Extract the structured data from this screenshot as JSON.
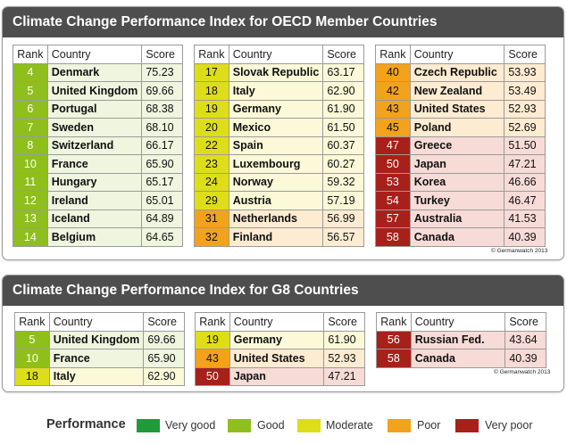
{
  "colors": {
    "very_good": "#1f9b3a",
    "good": "#8fbf1c",
    "moderate": "#dede18",
    "poor": "#f3a21b",
    "very_poor": "#a8201a",
    "good_row": "#eff5de",
    "moderate_row": "#fbf9d8",
    "poor_row": "#fdebd2",
    "very_poor_row": "#f7dbd6"
  },
  "chart_data": [
    {
      "type": "table",
      "title": "Climate Change Performance Index for OECD Member Countries",
      "columns": [
        "Rank",
        "Country",
        "Score"
      ],
      "rows": [
        {
          "rank": "4",
          "country": "Denmark",
          "score": "75.23",
          "performance": "good"
        },
        {
          "rank": "5",
          "country": "United Kingdom",
          "score": "69.66",
          "performance": "good"
        },
        {
          "rank": "6",
          "country": "Portugal",
          "score": "68.38",
          "performance": "good"
        },
        {
          "rank": "7",
          "country": "Sweden",
          "score": "68.10",
          "performance": "good"
        },
        {
          "rank": "8",
          "country": "Switzerland",
          "score": "66.17",
          "performance": "good"
        },
        {
          "rank": "10",
          "country": "France",
          "score": "65.90",
          "performance": "good"
        },
        {
          "rank": "11",
          "country": "Hungary",
          "score": "65.17",
          "performance": "good"
        },
        {
          "rank": "12",
          "country": "Ireland",
          "score": "65.01",
          "performance": "good"
        },
        {
          "rank": "13",
          "country": "Iceland",
          "score": "64.89",
          "performance": "good"
        },
        {
          "rank": "14",
          "country": "Belgium",
          "score": "64.65",
          "performance": "good"
        },
        {
          "rank": "17",
          "country": "Slovak Republic",
          "score": "63.17",
          "performance": "moderate"
        },
        {
          "rank": "18",
          "country": "Italy",
          "score": "62.90",
          "performance": "moderate"
        },
        {
          "rank": "19",
          "country": "Germany",
          "score": "61.90",
          "performance": "moderate"
        },
        {
          "rank": "20",
          "country": "Mexico",
          "score": "61.50",
          "performance": "moderate"
        },
        {
          "rank": "22",
          "country": "Spain",
          "score": "60.37",
          "performance": "moderate"
        },
        {
          "rank": "23",
          "country": "Luxembourg",
          "score": "60.27",
          "performance": "moderate"
        },
        {
          "rank": "24",
          "country": "Norway",
          "score": "59.32",
          "performance": "moderate"
        },
        {
          "rank": "29",
          "country": "Austria",
          "score": "57.19",
          "performance": "moderate"
        },
        {
          "rank": "31",
          "country": "Netherlands",
          "score": "56.99",
          "performance": "poor"
        },
        {
          "rank": "32",
          "country": "Finland",
          "score": "56.57",
          "performance": "poor"
        },
        {
          "rank": "40",
          "country": "Czech Republic",
          "score": "53.93",
          "performance": "poor"
        },
        {
          "rank": "42",
          "country": "New Zealand",
          "score": "53.49",
          "performance": "poor"
        },
        {
          "rank": "43",
          "country": "United States",
          "score": "52.93",
          "performance": "poor"
        },
        {
          "rank": "45",
          "country": "Poland",
          "score": "52.69",
          "performance": "poor"
        },
        {
          "rank": "47",
          "country": "Greece",
          "score": "51.50",
          "performance": "very_poor"
        },
        {
          "rank": "50",
          "country": "Japan",
          "score": "47.21",
          "performance": "very_poor"
        },
        {
          "rank": "53",
          "country": "Korea",
          "score": "46.66",
          "performance": "very_poor"
        },
        {
          "rank": "54",
          "country": "Turkey",
          "score": "46.47",
          "performance": "very_poor"
        },
        {
          "rank": "57",
          "country": "Australia",
          "score": "41.53",
          "performance": "very_poor"
        },
        {
          "rank": "58",
          "country": "Canada",
          "score": "40.39",
          "performance": "very_poor"
        }
      ],
      "copyright": "© Germanwatch 2013"
    },
    {
      "type": "table",
      "title": "Climate Change Performance Index for G8 Countries",
      "columns": [
        "Rank",
        "Country",
        "Score"
      ],
      "rows": [
        {
          "rank": "5",
          "country": "United Kingdom",
          "score": "69.66",
          "performance": "good"
        },
        {
          "rank": "10",
          "country": "France",
          "score": "65.90",
          "performance": "good"
        },
        {
          "rank": "18",
          "country": "Italy",
          "score": "62.90",
          "performance": "moderate"
        },
        {
          "rank": "19",
          "country": "Germany",
          "score": "61.90",
          "performance": "moderate"
        },
        {
          "rank": "43",
          "country": "United States",
          "score": "52.93",
          "performance": "poor"
        },
        {
          "rank": "50",
          "country": "Japan",
          "score": "47.21",
          "performance": "very_poor"
        },
        {
          "rank": "56",
          "country": "Russian Fed.",
          "score": "43.64",
          "performance": "very_poor"
        },
        {
          "rank": "58",
          "country": "Canada",
          "score": "40.39",
          "performance": "very_poor"
        }
      ],
      "copyright": "© Germanwatch 2013"
    }
  ],
  "legend": {
    "title": "Performance",
    "items": [
      {
        "key": "very_good",
        "label": "Very good"
      },
      {
        "key": "good",
        "label": "Good"
      },
      {
        "key": "moderate",
        "label": "Moderate"
      },
      {
        "key": "poor",
        "label": "Poor"
      },
      {
        "key": "very_poor",
        "label": "Very poor"
      }
    ]
  }
}
